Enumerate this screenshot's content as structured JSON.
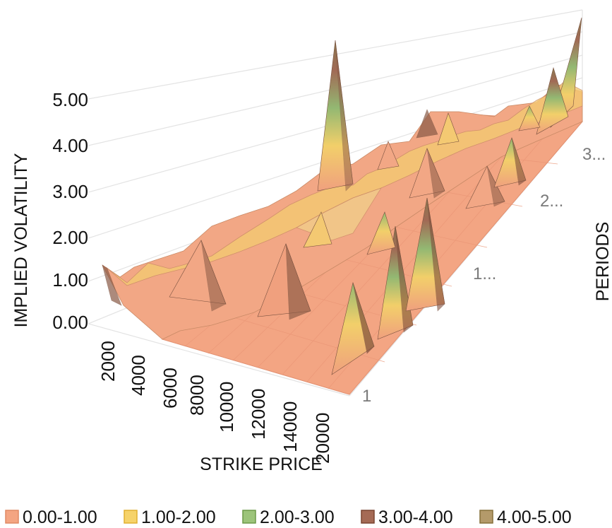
{
  "chart_data": {
    "type": "surface",
    "title": "",
    "zlabel": "IMPLIED VOLATILITY",
    "xlabel": "STRIKE PRICE",
    "ylabel": "PERIODS",
    "z_ticks": [
      "0.00",
      "1.00",
      "2.00",
      "3.00",
      "4.00",
      "5.00"
    ],
    "zlim": [
      0,
      5
    ],
    "x_ticks": [
      "2000",
      "4000",
      "6000",
      "8000",
      "10000",
      "12000",
      "14000",
      "20000"
    ],
    "y_ticks": [
      "1",
      "1...",
      "2...",
      "3..."
    ],
    "legend": [
      {
        "label": "0.00-1.00",
        "color": "#f4a582"
      },
      {
        "label": "1.00-2.00",
        "color": "#f6d36a"
      },
      {
        "label": "2.00-3.00",
        "color": "#9cc47a"
      },
      {
        "label": "3.00-4.00",
        "color": "#a56a55"
      },
      {
        "label": "4.00-5.00",
        "color": "#b49a6a"
      }
    ],
    "legend_position": "bottom",
    "grid": true
  }
}
